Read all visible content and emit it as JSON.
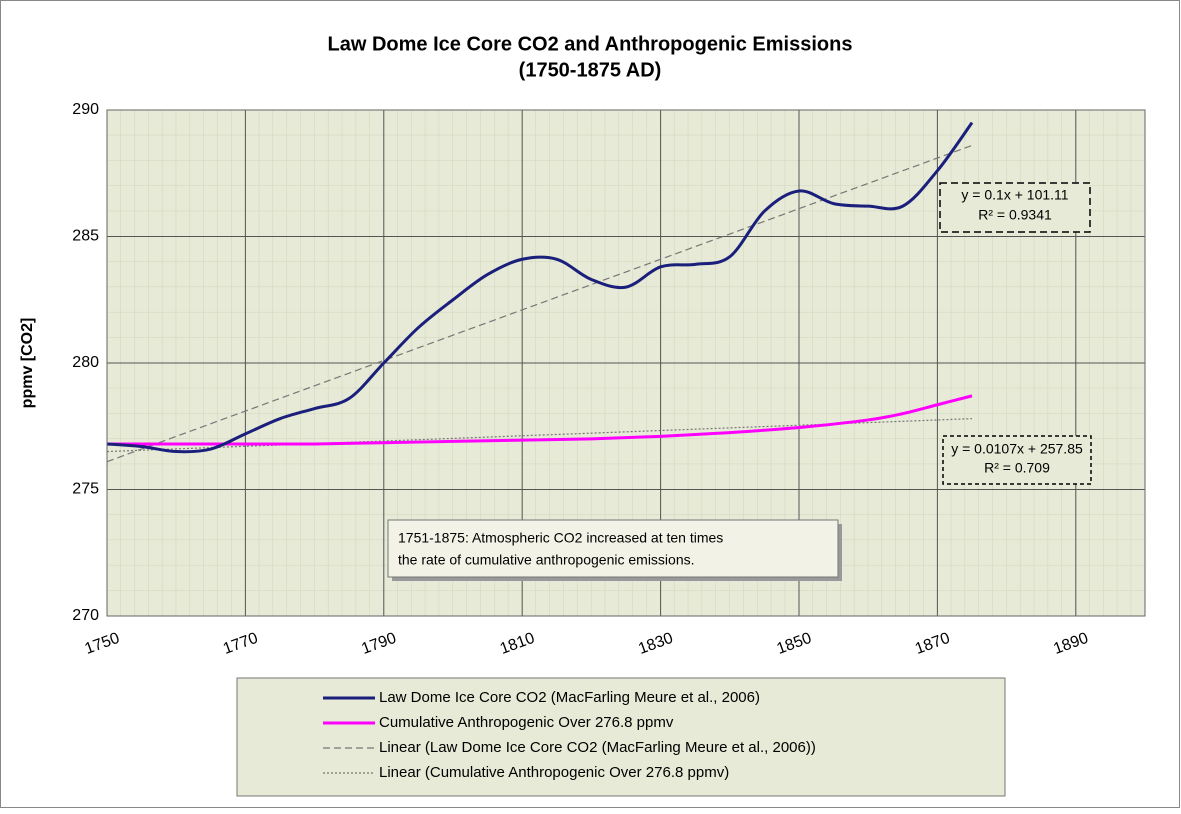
{
  "chart_data": {
    "type": "line",
    "title": "Law Dome Ice Core CO2 and Anthropogenic Emissions",
    "subtitle": "(1750-1875 AD)",
    "y_label": "ppmv [CO2]",
    "xlim": [
      1750,
      1900
    ],
    "xticks": [
      1750,
      1770,
      1790,
      1810,
      1830,
      1850,
      1870,
      1890
    ],
    "ylim": [
      270,
      290
    ],
    "yticks": [
      270,
      275,
      280,
      285,
      290
    ],
    "grid": true,
    "legend": "bottom",
    "series": [
      {
        "name": "Law Dome Ice Core CO2 (MacFarling Meure et al., 2006)",
        "color": "#1b1f7c",
        "style": "solid",
        "x": [
          1750,
          1755,
          1760,
          1765,
          1770,
          1775,
          1780,
          1785,
          1790,
          1795,
          1800,
          1805,
          1810,
          1815,
          1820,
          1825,
          1830,
          1835,
          1840,
          1845,
          1850,
          1855,
          1860,
          1865,
          1870,
          1875
        ],
        "values": [
          276.8,
          276.7,
          276.5,
          276.6,
          277.2,
          277.8,
          278.2,
          278.6,
          280.0,
          281.4,
          282.5,
          283.5,
          284.1,
          284.1,
          283.3,
          283.0,
          283.8,
          283.9,
          284.2,
          286.0,
          286.8,
          286.3,
          286.2,
          286.2,
          287.6,
          289.5
        ]
      },
      {
        "name": "Cumulative Anthropogenic Over 276.8 ppmv",
        "color": "#ff00ff",
        "style": "solid",
        "x": [
          1750,
          1760,
          1770,
          1780,
          1790,
          1800,
          1810,
          1820,
          1830,
          1840,
          1850,
          1860,
          1865,
          1870,
          1875
        ],
        "values": [
          276.8,
          276.8,
          276.8,
          276.8,
          276.85,
          276.9,
          276.95,
          277.0,
          277.1,
          277.25,
          277.45,
          277.75,
          278.0,
          278.35,
          278.7
        ]
      },
      {
        "name": "Linear (Law Dome Ice Core CO2 (MacFarling Meure et al., 2006))",
        "color": "#777777",
        "style": "dashed",
        "x": [
          1750,
          1875
        ],
        "values": [
          276.1,
          288.6
        ]
      },
      {
        "name": "Linear (Cumulative Anthropogenic Over 276.8 ppmv)",
        "color": "#777777",
        "style": "dotted",
        "x": [
          1750,
          1875
        ],
        "values": [
          276.5,
          277.8
        ]
      }
    ],
    "annotations": [
      {
        "lines": [
          "y = 0.1x + 101.11",
          "R² = 0.9341"
        ]
      },
      {
        "lines": [
          "y = 0.0107x + 257.85",
          "R² = 0.709"
        ]
      },
      {
        "lines": [
          "1751-1875: Atmospheric CO2 increased at ten times",
          "the rate of cumulative anthropogenic emissions."
        ]
      }
    ]
  }
}
